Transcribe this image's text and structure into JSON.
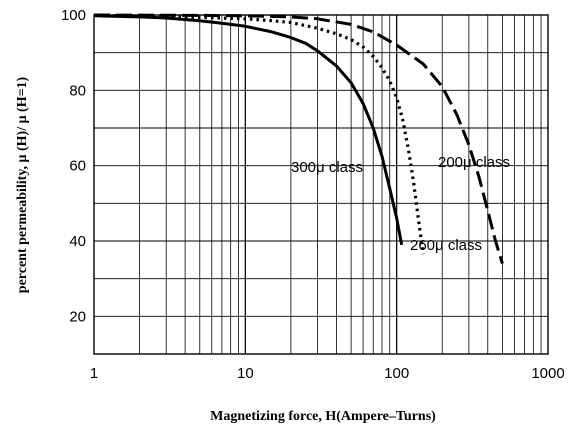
{
  "chart_data": {
    "type": "line",
    "xscale": "log",
    "xlim": [
      1,
      1000
    ],
    "ylim": [
      10,
      100
    ],
    "grid": true,
    "xlabel": "Magnetizing force, H(Ampere–Turns)",
    "ylabel": "percent permeability, μ (H)/ μ (H=1)",
    "x_ticks": [
      "1",
      "10",
      "100",
      "1000"
    ],
    "y_ticks": [
      "20",
      "40",
      "60",
      "80",
      "100"
    ],
    "series": [
      {
        "name": "300μ class",
        "style": "solid",
        "x": [
          1,
          2,
          3,
          5,
          7,
          10,
          15,
          20,
          25,
          30,
          40,
          50,
          60,
          70,
          80,
          90,
          100,
          108
        ],
        "y": [
          99.8,
          99.5,
          99.2,
          98.5,
          97.8,
          97,
          95.5,
          94,
          92.5,
          90.5,
          86.5,
          82,
          76.5,
          70,
          62.5,
          54,
          46,
          39
        ]
      },
      {
        "name": "260μ class",
        "style": "dotted",
        "x": [
          1,
          3,
          5,
          10,
          15,
          20,
          30,
          40,
          50,
          60,
          70,
          80,
          90,
          100,
          110,
          120,
          130,
          140,
          150
        ],
        "y": [
          99.9,
          99.6,
          99.4,
          99,
          98.5,
          98,
          96.5,
          95,
          93.5,
          91.5,
          89,
          86,
          82.5,
          78,
          72,
          64,
          55,
          45,
          36.5
        ]
      },
      {
        "name": "200μ class",
        "style": "dashed",
        "x": [
          1,
          5,
          10,
          20,
          30,
          50,
          70,
          100,
          150,
          200,
          250,
          300,
          350,
          400,
          450,
          500
        ],
        "y": [
          100,
          99.9,
          99.8,
          99.5,
          99,
          97.5,
          95.5,
          92,
          87,
          81,
          73.5,
          65.5,
          57,
          48,
          40,
          34
        ]
      }
    ]
  }
}
